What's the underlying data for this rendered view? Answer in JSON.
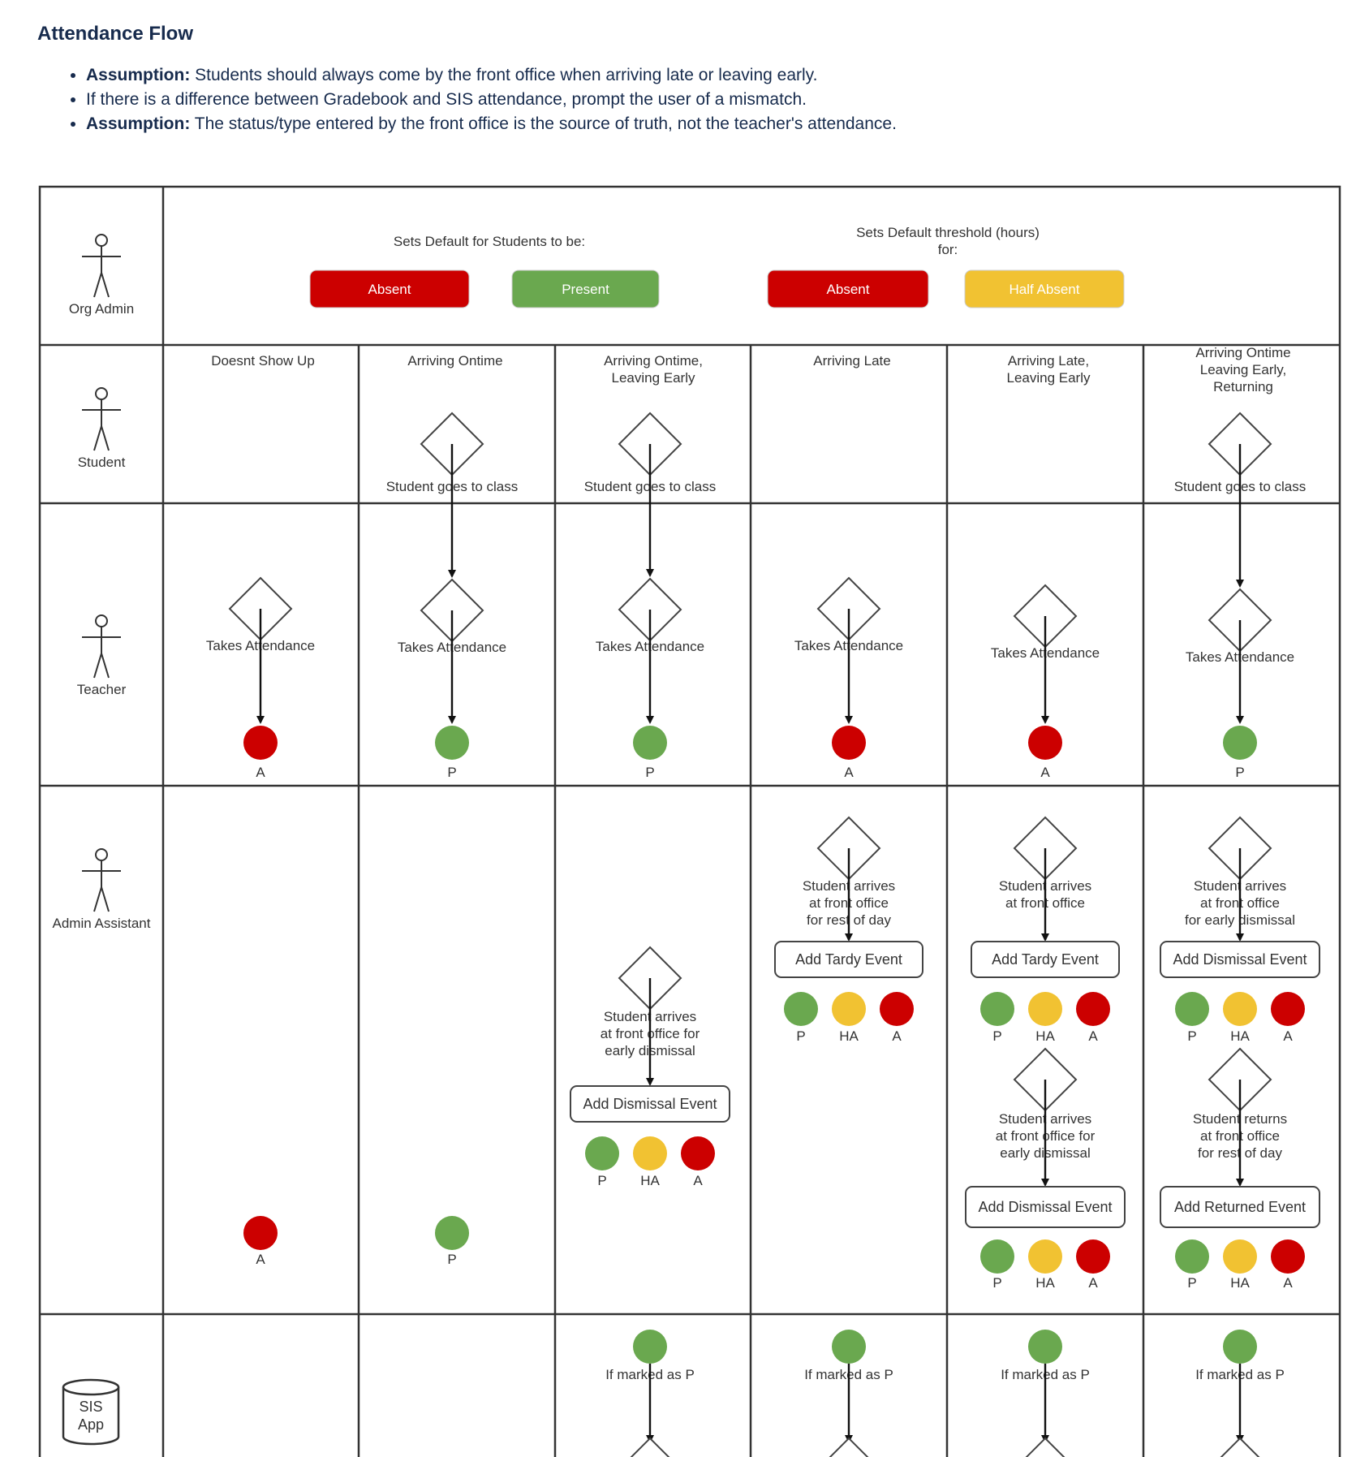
{
  "page": {
    "title": "Attendance Flow",
    "notes": [
      {
        "bold": "Assumption:",
        "text": " Students should always come by the front office when arriving late or leaving early."
      },
      {
        "bold": "",
        "text": "If there is a difference between Gradebook and SIS attendance, prompt the user of a mismatch."
      },
      {
        "bold": "Assumption:",
        "text": " The status/type entered by the front office is the source of truth, not the teacher's attendance."
      }
    ]
  },
  "colors": {
    "red": "#cc0000",
    "green": "#6aa84f",
    "yellow": "#f1c232",
    "line": "#333333"
  },
  "lanes": [
    "Org Admin",
    "Student",
    "Teacher",
    "Admin Assistant",
    "SIS App"
  ],
  "org_admin": {
    "group1_label": "Sets Default for Students to be:",
    "group1_buttons": [
      {
        "label": "Absent",
        "color": "red"
      },
      {
        "label": "Present",
        "color": "green"
      }
    ],
    "group2_label": [
      "Sets Default threshold (hours)",
      "for:"
    ],
    "group2_buttons": [
      {
        "label": "Absent",
        "color": "red"
      },
      {
        "label": "Half Absent",
        "color": "yellow"
      }
    ]
  },
  "columns": [
    {
      "header": [
        "Doesnt Show Up"
      ],
      "student": null,
      "teacher": {
        "label": "Takes Attendance",
        "result": "A"
      },
      "admin": {
        "final": "A"
      },
      "sis": null
    },
    {
      "header": [
        "Arriving Ontime"
      ],
      "student": "Student goes to class",
      "teacher": {
        "label": "Takes Attendance",
        "result": "P"
      },
      "admin": {
        "final": "P"
      },
      "sis": null
    },
    {
      "header": [
        "Arriving Ontime,",
        "Leaving Early"
      ],
      "student": "Student goes to class",
      "teacher": {
        "label": "Takes Attendance",
        "result": "P"
      },
      "admin": {
        "steps": [
          {
            "decision": [
              "Student arrives",
              "at front office for",
              "early dismissal"
            ],
            "event": "Add Dismissal Event",
            "options": [
              "P",
              "HA",
              "A"
            ]
          }
        ]
      },
      "sis": "If marked as P"
    },
    {
      "header": [
        "Arriving Late"
      ],
      "student": null,
      "teacher": {
        "label": "Takes Attendance",
        "result": "A"
      },
      "admin": {
        "steps": [
          {
            "decision": [
              "Student arrives",
              "at front office",
              "for rest of day"
            ],
            "event": "Add Tardy Event",
            "options": [
              "P",
              "HA",
              "A"
            ]
          }
        ]
      },
      "sis": "If marked as P"
    },
    {
      "header": [
        "Arriving Late,",
        "Leaving Early"
      ],
      "student": null,
      "teacher": {
        "label": "Takes Attendance",
        "result": "A"
      },
      "admin": {
        "steps": [
          {
            "decision": [
              "Student arrives",
              "at front office"
            ],
            "event": "Add Tardy Event",
            "options": [
              "P",
              "HA",
              "A"
            ]
          },
          {
            "decision": [
              "Student arrives",
              "at front office for",
              "early dismissal"
            ],
            "event": "Add Dismissal Event",
            "options": [
              "P",
              "HA",
              "A"
            ]
          }
        ]
      },
      "sis": "If marked as P"
    },
    {
      "header": [
        "Arriving Ontime",
        "Leaving Early,",
        "Returning"
      ],
      "student": "Student goes to class",
      "teacher": {
        "label": "Takes Attendance",
        "result": "P"
      },
      "admin": {
        "steps": [
          {
            "decision": [
              "Student arrives",
              "at front office",
              "for early dismissal"
            ],
            "event": "Add Dismissal Event",
            "options": [
              "P",
              "HA",
              "A"
            ]
          },
          {
            "decision": [
              "Student returns",
              "at front office",
              "for rest of day"
            ],
            "event": "Add Returned Event",
            "options": [
              "P",
              "HA",
              "A"
            ]
          }
        ]
      },
      "sis": "If marked as P"
    }
  ],
  "sis_app": {
    "label": [
      "SIS",
      "App"
    ]
  }
}
